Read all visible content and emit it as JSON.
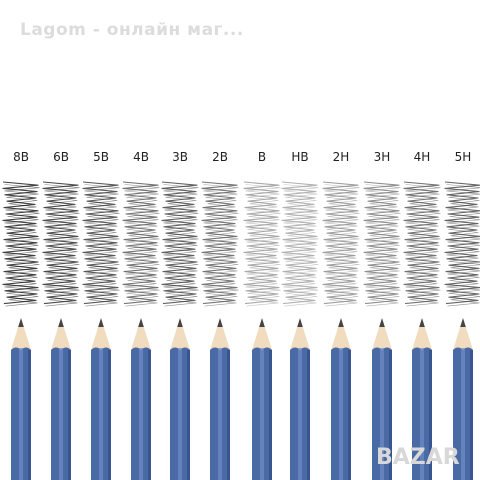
{
  "caption": "Lagom - онлайн маг...",
  "grades": [
    {
      "label": "8B",
      "tone": "#1e1e1e"
    },
    {
      "label": "6B",
      "tone": "#2e2e2e"
    },
    {
      "label": "5B",
      "tone": "#3d3d3d"
    },
    {
      "label": "4B",
      "tone": "#5a5a5a"
    },
    {
      "label": "3B",
      "tone": "#454545"
    },
    {
      "label": "2B",
      "tone": "#5f5f5f"
    },
    {
      "label": "B",
      "tone": "#9a9a9a"
    },
    {
      "label": "HB",
      "tone": "#a4a4a4"
    },
    {
      "label": "2H",
      "tone": "#8e8e8e"
    },
    {
      "label": "3H",
      "tone": "#7c7c7c"
    },
    {
      "label": "4H",
      "tone": "#5c5c5c"
    },
    {
      "label": "5H",
      "tone": "#4a4a4a"
    }
  ],
  "pencil": {
    "body_color": "#4a6aa6",
    "body_highlight": "#6f8fc8",
    "body_shadow": "#33508a",
    "wood_color": "#f1dcc0",
    "graphite_color": "#444444"
  },
  "watermark": {
    "text": "BAZAR",
    "color": "#d8d8d8"
  }
}
